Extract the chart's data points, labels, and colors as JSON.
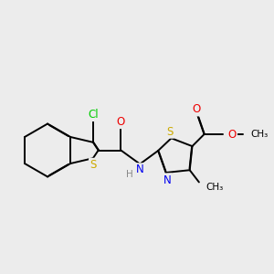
{
  "bg_color": "#ececec",
  "atom_colors": {
    "Cl": "#00cc00",
    "S": "#ccaa00",
    "N": "#0000ee",
    "O": "#ee0000",
    "H": "#888888",
    "C": "#000000"
  },
  "lw": 1.4,
  "dbo": 0.012
}
